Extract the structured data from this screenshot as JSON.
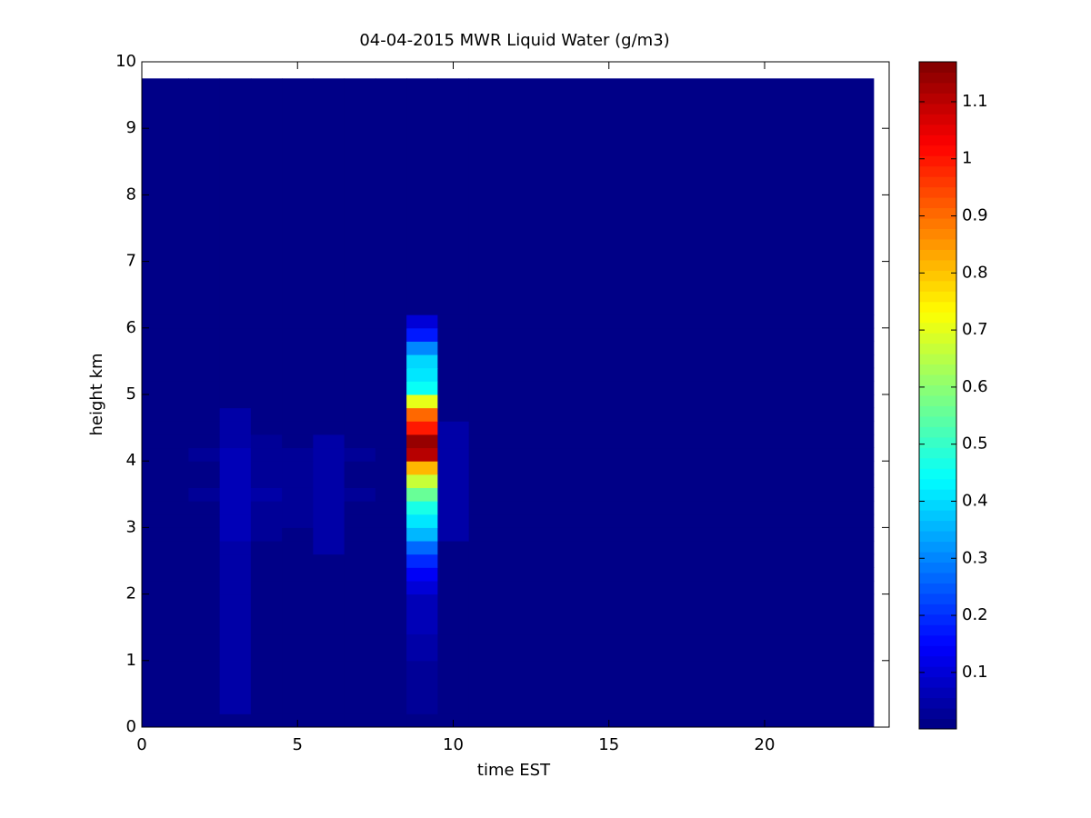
{
  "chart_data": {
    "type": "heatmap",
    "title": "04-04-2015 MWR Liquid Water (g/m3)",
    "x_label": "time EST",
    "y_label": "height km",
    "colormap": "jet",
    "xlim": [
      0,
      24
    ],
    "xticks": [
      0,
      5,
      10,
      15,
      20
    ],
    "ylim": [
      0,
      10
    ],
    "yticks": [
      0,
      1,
      2,
      3,
      4,
      5,
      6,
      7,
      8,
      9,
      10
    ],
    "clim": [
      0.001,
      1.17
    ],
    "cticks": [
      0.1,
      0.2,
      0.3,
      0.4,
      0.5,
      0.6,
      0.7,
      0.8,
      0.9,
      1,
      1.1
    ],
    "x_bins": [
      0,
      1.5,
      2.5,
      3.5,
      4.5,
      5.5,
      6.5,
      7.5,
      8.5,
      9.5,
      10.5,
      23.5
    ],
    "y_bins": [
      0,
      0.2,
      1.0,
      1.4,
      2.0,
      2.2,
      2.4,
      2.6,
      2.8,
      3.0,
      3.2,
      3.4,
      3.6,
      3.8,
      4.0,
      4.2,
      4.4,
      4.6,
      4.8,
      5.0,
      5.2,
      5.4,
      5.6,
      5.8,
      6.0,
      6.2,
      9.75
    ],
    "z": [
      [
        0.001,
        0.001,
        0.001,
        0.001,
        0.001,
        0.001,
        0.001,
        0.001,
        0.001,
        0.001,
        0.001
      ],
      [
        0.001,
        0.001,
        0.05,
        0.001,
        0.001,
        0.001,
        0.001,
        0.001,
        0.02,
        0.001,
        0.001
      ],
      [
        0.001,
        0.001,
        0.05,
        0.001,
        0.001,
        0.001,
        0.001,
        0.001,
        0.05,
        0.001,
        0.001
      ],
      [
        0.001,
        0.001,
        0.05,
        0.001,
        0.001,
        0.001,
        0.001,
        0.001,
        0.06,
        0.001,
        0.001
      ],
      [
        0.001,
        0.001,
        0.05,
        0.001,
        0.001,
        0.001,
        0.001,
        0.001,
        0.1,
        0.001,
        0.001
      ],
      [
        0.001,
        0.001,
        0.05,
        0.001,
        0.001,
        0.001,
        0.001,
        0.001,
        0.14,
        0.001,
        0.001
      ],
      [
        0.001,
        0.001,
        0.05,
        0.001,
        0.001,
        0.001,
        0.001,
        0.001,
        0.2,
        0.001,
        0.001
      ],
      [
        0.001,
        0.001,
        0.05,
        0.001,
        0.001,
        0.04,
        0.001,
        0.001,
        0.26,
        0.001,
        0.001
      ],
      [
        0.001,
        0.001,
        0.06,
        0.03,
        0.001,
        0.04,
        0.001,
        0.001,
        0.36,
        0.04,
        0.001
      ],
      [
        0.001,
        0.001,
        0.06,
        0.03,
        0.02,
        0.04,
        0.001,
        0.001,
        0.42,
        0.04,
        0.001
      ],
      [
        0.001,
        0.001,
        0.06,
        0.03,
        0.02,
        0.04,
        0.001,
        0.001,
        0.46,
        0.04,
        0.001
      ],
      [
        0.001,
        0.03,
        0.07,
        0.04,
        0.02,
        0.05,
        0.03,
        0.001,
        0.55,
        0.05,
        0.001
      ],
      [
        0.001,
        0.001,
        0.06,
        0.03,
        0.02,
        0.04,
        0.001,
        0.001,
        0.66,
        0.04,
        0.001
      ],
      [
        0.001,
        0.001,
        0.06,
        0.03,
        0.02,
        0.04,
        0.001,
        0.001,
        0.82,
        0.04,
        0.001
      ],
      [
        0.001,
        0.03,
        0.06,
        0.03,
        0.03,
        0.04,
        0.02,
        0.001,
        1.1,
        0.05,
        0.001
      ],
      [
        0.001,
        0.001,
        0.05,
        0.03,
        0.001,
        0.04,
        0.001,
        0.001,
        1.15,
        0.04,
        0.001
      ],
      [
        0.001,
        0.001,
        0.05,
        0.001,
        0.001,
        0.001,
        0.001,
        0.001,
        1.0,
        0.04,
        0.001
      ],
      [
        0.001,
        0.001,
        0.05,
        0.001,
        0.001,
        0.001,
        0.001,
        0.001,
        0.9,
        0.001,
        0.001
      ],
      [
        0.001,
        0.001,
        0.001,
        0.001,
        0.001,
        0.001,
        0.001,
        0.001,
        0.7,
        0.001,
        0.001
      ],
      [
        0.001,
        0.001,
        0.001,
        0.001,
        0.001,
        0.001,
        0.001,
        0.001,
        0.44,
        0.001,
        0.001
      ],
      [
        0.001,
        0.001,
        0.001,
        0.001,
        0.001,
        0.001,
        0.001,
        0.001,
        0.42,
        0.001,
        0.001
      ],
      [
        0.001,
        0.001,
        0.001,
        0.001,
        0.001,
        0.001,
        0.001,
        0.001,
        0.4,
        0.001,
        0.001
      ],
      [
        0.001,
        0.001,
        0.001,
        0.001,
        0.001,
        0.001,
        0.001,
        0.001,
        0.3,
        0.001,
        0.001
      ],
      [
        0.001,
        0.001,
        0.001,
        0.001,
        0.001,
        0.001,
        0.001,
        0.001,
        0.18,
        0.001,
        0.001
      ],
      [
        0.001,
        0.001,
        0.001,
        0.001,
        0.001,
        0.001,
        0.001,
        0.001,
        0.1,
        0.001,
        0.001
      ],
      [
        0.001,
        0.001,
        0.001,
        0.001,
        0.001,
        0.001,
        0.001,
        0.001,
        0.001,
        0.001,
        0.001
      ]
    ]
  }
}
